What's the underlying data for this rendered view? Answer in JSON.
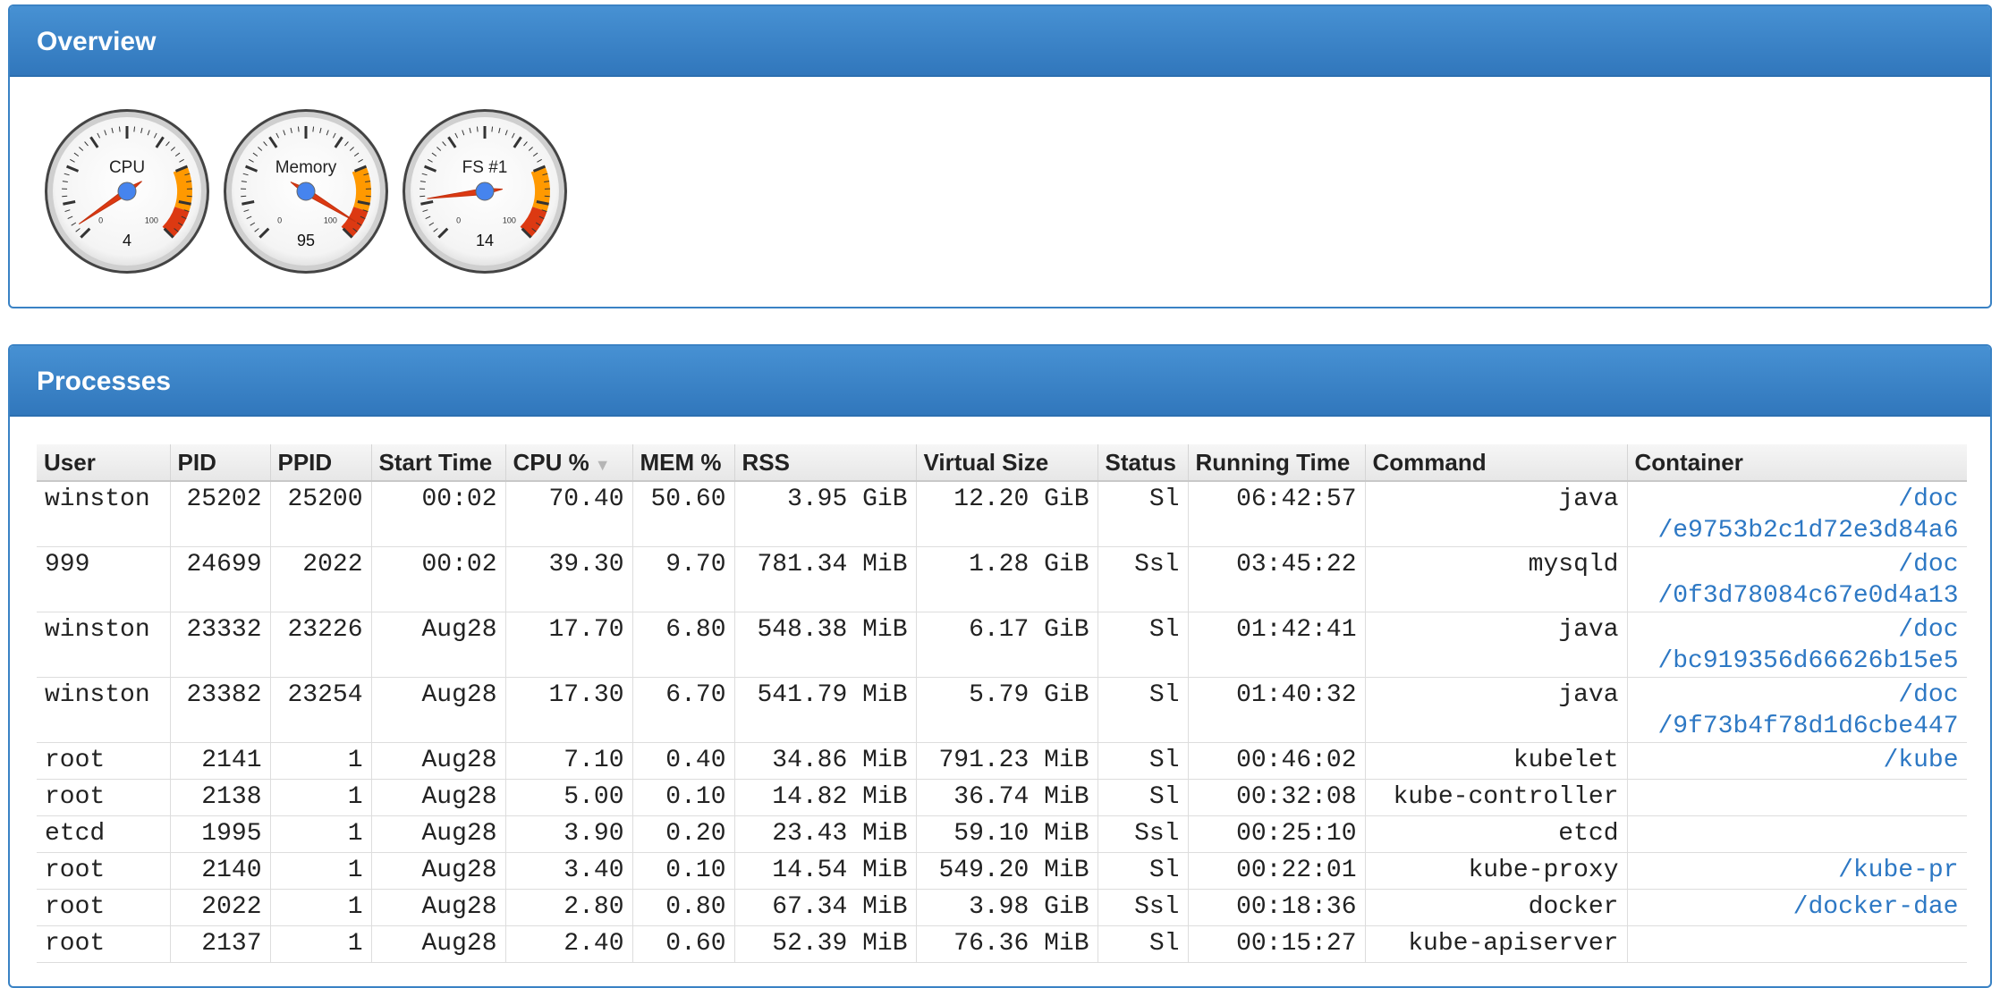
{
  "overview": {
    "title": "Overview",
    "gauges": [
      {
        "label": "CPU",
        "value": 4,
        "min_label": "0",
        "max_label": "100"
      },
      {
        "label": "Memory",
        "value": 95,
        "min_label": "0",
        "max_label": "100"
      },
      {
        "label": "FS #1",
        "value": 14,
        "min_label": "0",
        "max_label": "100"
      }
    ]
  },
  "processes": {
    "title": "Processes",
    "columns": [
      "User",
      "PID",
      "PPID",
      "Start Time",
      "CPU %",
      "MEM %",
      "RSS",
      "Virtual Size",
      "Status",
      "Running Time",
      "Command",
      "Container"
    ],
    "rows": [
      {
        "user": "winston",
        "pid": "25202",
        "ppid": "25200",
        "start": "00:02",
        "cpu": "70.40",
        "mem": "50.60",
        "rss": "3.95 GiB",
        "vsize": "12.20 GiB",
        "status": "Sl",
        "running": "06:42:57",
        "command": "java",
        "container": [
          "/doc",
          "/e9753b2c1d72e3d84a6"
        ]
      },
      {
        "user": "999",
        "pid": "24699",
        "ppid": "2022",
        "start": "00:02",
        "cpu": "39.30",
        "mem": "9.70",
        "rss": "781.34 MiB",
        "vsize": "1.28 GiB",
        "status": "Ssl",
        "running": "03:45:22",
        "command": "mysqld",
        "container": [
          "/doc",
          "/0f3d78084c67e0d4a13"
        ]
      },
      {
        "user": "winston",
        "pid": "23332",
        "ppid": "23226",
        "start": "Aug28",
        "cpu": "17.70",
        "mem": "6.80",
        "rss": "548.38 MiB",
        "vsize": "6.17 GiB",
        "status": "Sl",
        "running": "01:42:41",
        "command": "java",
        "container": [
          "/doc",
          "/bc919356d66626b15e5"
        ]
      },
      {
        "user": "winston",
        "pid": "23382",
        "ppid": "23254",
        "start": "Aug28",
        "cpu": "17.30",
        "mem": "6.70",
        "rss": "541.79 MiB",
        "vsize": "5.79 GiB",
        "status": "Sl",
        "running": "01:40:32",
        "command": "java",
        "container": [
          "/doc",
          "/9f73b4f78d1d6cbe447"
        ]
      },
      {
        "user": "root",
        "pid": "2141",
        "ppid": "1",
        "start": "Aug28",
        "cpu": "7.10",
        "mem": "0.40",
        "rss": "34.86 MiB",
        "vsize": "791.23 MiB",
        "status": "Sl",
        "running": "00:46:02",
        "command": "kubelet",
        "container": [
          "/kube"
        ]
      },
      {
        "user": "root",
        "pid": "2138",
        "ppid": "1",
        "start": "Aug28",
        "cpu": "5.00",
        "mem": "0.10",
        "rss": "14.82 MiB",
        "vsize": "36.74 MiB",
        "status": "Sl",
        "running": "00:32:08",
        "command": "kube-controller",
        "container": []
      },
      {
        "user": "etcd",
        "pid": "1995",
        "ppid": "1",
        "start": "Aug28",
        "cpu": "3.90",
        "mem": "0.20",
        "rss": "23.43 MiB",
        "vsize": "59.10 MiB",
        "status": "Ssl",
        "running": "00:25:10",
        "command": "etcd",
        "container": []
      },
      {
        "user": "root",
        "pid": "2140",
        "ppid": "1",
        "start": "Aug28",
        "cpu": "3.40",
        "mem": "0.10",
        "rss": "14.54 MiB",
        "vsize": "549.20 MiB",
        "status": "Sl",
        "running": "00:22:01",
        "command": "kube-proxy",
        "container": [
          "/kube-pr"
        ]
      },
      {
        "user": "root",
        "pid": "2022",
        "ppid": "1",
        "start": "Aug28",
        "cpu": "2.80",
        "mem": "0.80",
        "rss": "67.34 MiB",
        "vsize": "3.98 GiB",
        "status": "Ssl",
        "running": "00:18:36",
        "command": "docker",
        "container": [
          "/docker-dae"
        ]
      },
      {
        "user": "root",
        "pid": "2137",
        "ppid": "1",
        "start": "Aug28",
        "cpu": "2.40",
        "mem": "0.60",
        "rss": "52.39 MiB",
        "vsize": "76.36 MiB",
        "status": "Sl",
        "running": "00:15:27",
        "command": "kube-apiserver",
        "container": []
      }
    ]
  },
  "colors": {
    "header_blue": "#3a82c4",
    "link_blue": "#2d78c4",
    "gauge_yellow": "#ff9900",
    "gauge_red": "#dc3912",
    "gauge_hub": "#4684ee"
  },
  "icons": {
    "sort": "sort-desc-icon"
  }
}
